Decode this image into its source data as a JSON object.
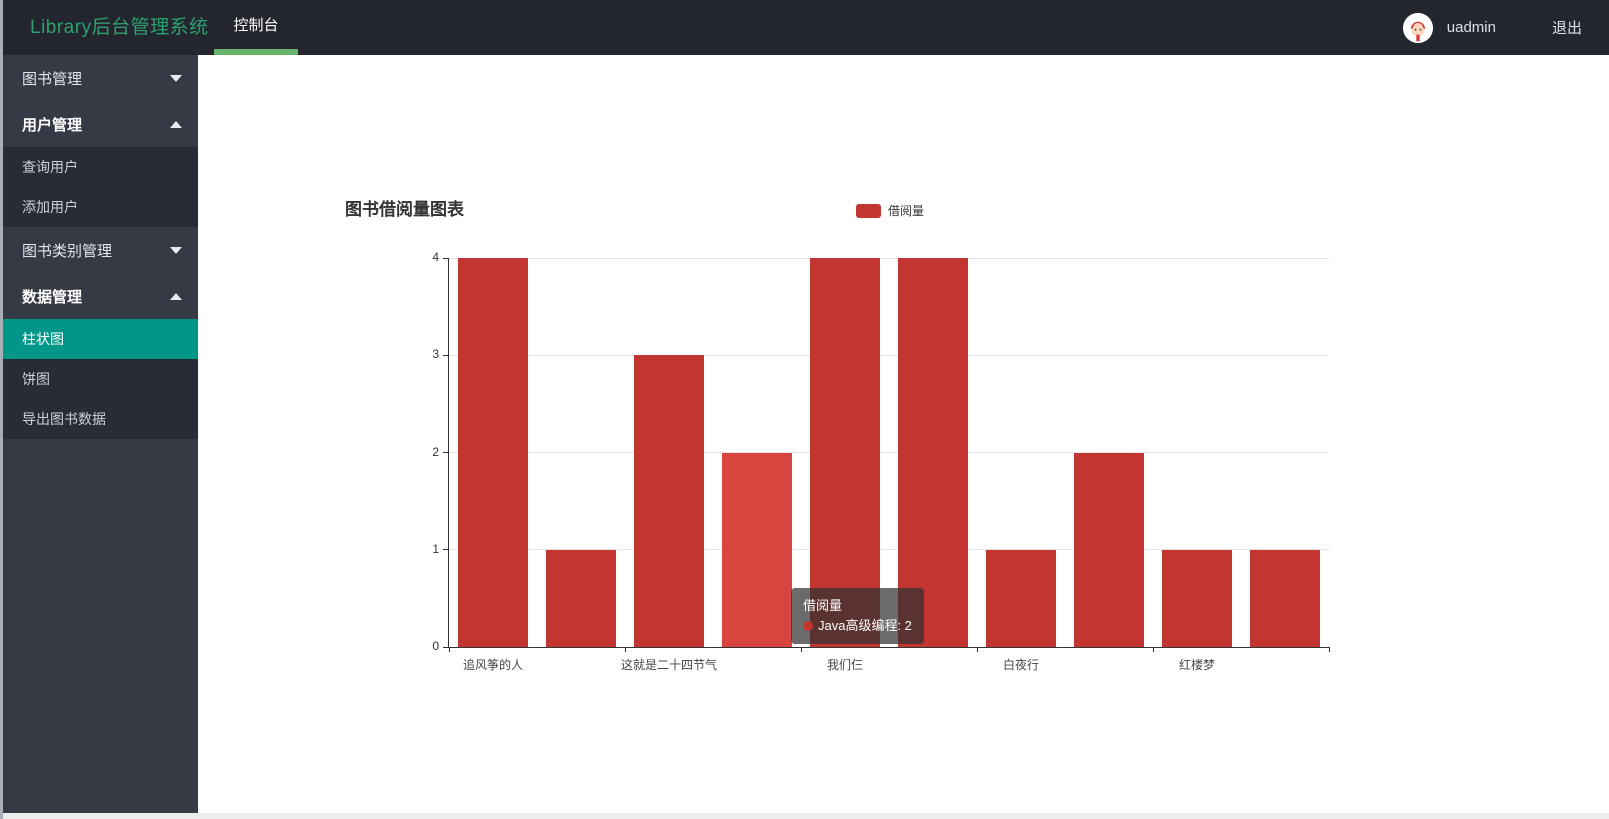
{
  "header": {
    "brand": "Library后台管理系统",
    "brand_color": "#2ca06f",
    "tab": "控制台",
    "tab_underline_color": "#66b46a",
    "username": "uadmin",
    "logout": "退出"
  },
  "sidebar": {
    "active_bg": "#009688",
    "items": [
      {
        "id": "book-manage",
        "label": "图书管理",
        "type": "parent",
        "state": "collapsed"
      },
      {
        "id": "user-manage",
        "label": "用户管理",
        "type": "parent",
        "state": "expanded"
      },
      {
        "id": "query-user",
        "label": "查询用户",
        "type": "child",
        "active": false
      },
      {
        "id": "add-user",
        "label": "添加用户",
        "type": "child",
        "active": false
      },
      {
        "id": "category-manage",
        "label": "图书类别管理",
        "type": "parent",
        "state": "collapsed"
      },
      {
        "id": "data-manage",
        "label": "数据管理",
        "type": "parent",
        "state": "expanded"
      },
      {
        "id": "bar-chart",
        "label": "柱状图",
        "type": "child",
        "active": true
      },
      {
        "id": "pie-chart",
        "label": "饼图",
        "type": "child",
        "active": false
      },
      {
        "id": "export-data",
        "label": "导出图书数据",
        "type": "child",
        "active": false
      }
    ]
  },
  "chart_data": {
    "type": "bar",
    "title": "图书借阅量图表",
    "legend": [
      {
        "name": "借阅量",
        "color": "#c23531"
      }
    ],
    "categories": [
      "追风筝的人",
      "",
      "这就是二十四节气",
      "Java高级编程",
      "我们仨",
      "",
      "白夜行",
      "",
      "红楼梦",
      ""
    ],
    "x_label_interval": "every other category labeled",
    "series": [
      {
        "name": "借阅量",
        "values": [
          4,
          1,
          3,
          2,
          4,
          4,
          1,
          2,
          1,
          1
        ]
      }
    ],
    "ylim": [
      0,
      4
    ],
    "y_ticks": [
      0,
      1,
      2,
      3,
      4
    ],
    "grid": true,
    "legend_position": "top-center",
    "bar_color": "#c23531",
    "highlight_index": 3,
    "highlight_color": "#d8453f",
    "tooltip": {
      "title": "借阅量",
      "item": "Java高级编程",
      "value": 2,
      "marker_color": "#c23531"
    }
  }
}
